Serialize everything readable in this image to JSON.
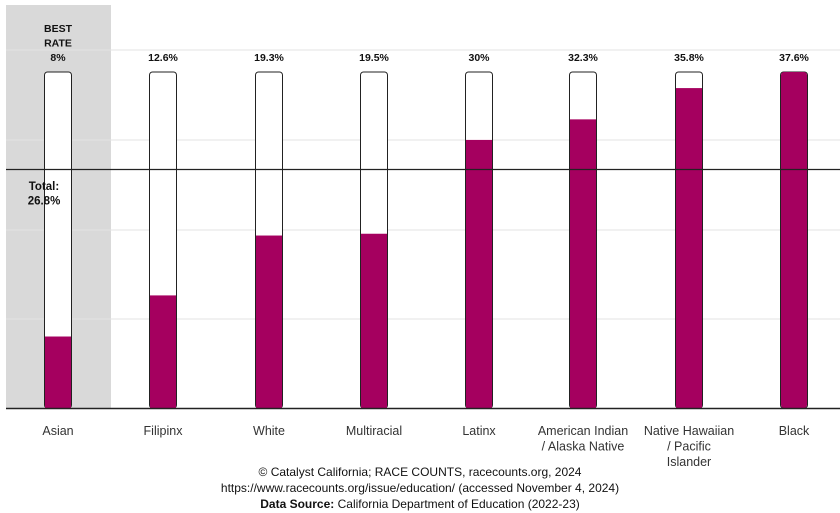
{
  "chart_data": {
    "type": "bar",
    "categories": [
      "Asian",
      "Filipinx",
      "White",
      "Multiracial",
      "Latinx",
      "American Indian / Alaska Native",
      "Native Hawaiian / Pacific Islander",
      "Black"
    ],
    "category_lines": [
      [
        "Asian"
      ],
      [
        "Filipinx"
      ],
      [
        "White"
      ],
      [
        "Multiracial"
      ],
      [
        "Latinx"
      ],
      [
        "American Indian",
        "/ Alaska Native"
      ],
      [
        "Native Hawaiian",
        "/ Pacific",
        "Islander"
      ],
      [
        "Black"
      ]
    ],
    "values": [
      8,
      12.6,
      19.3,
      19.5,
      30,
      32.3,
      35.8,
      37.6
    ],
    "value_labels": [
      "8%",
      "12.6%",
      "19.3%",
      "19.5%",
      "30%",
      "32.3%",
      "35.8%",
      "37.6%"
    ],
    "ylim": [
      0,
      37.6
    ],
    "grid": true,
    "best_label_lines": [
      "BEST",
      "RATE"
    ],
    "highlight_category": "Asian",
    "total_value": 26.8,
    "total_label_lines": [
      "Total:",
      "26.8%"
    ],
    "colors": {
      "bar": "#a5005f",
      "highlight_bg": "#d9d9d9",
      "bar_outline": "#222222",
      "grid": "#e3e3e3",
      "total_line": "#222222"
    }
  },
  "footer": {
    "copyright": "© Catalyst California; RACE COUNTS, racecounts.org, 2024",
    "url_line": "https://www.racecounts.org/issue/education/ (accessed November 4, 2024)",
    "source_label": "Data Source:",
    "source_text": "California Department of Education (2022-23)"
  }
}
